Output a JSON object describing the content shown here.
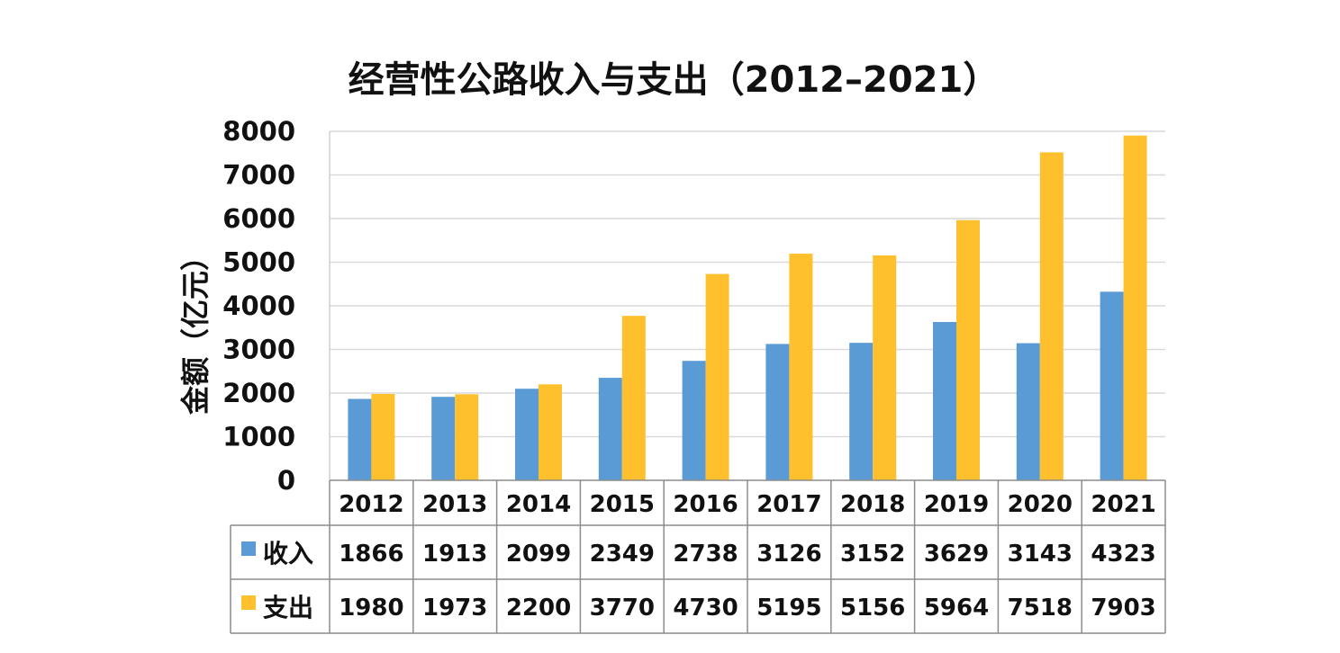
{
  "chart_data": {
    "type": "bar",
    "title": "经营性公路收入与支出（2012–2021）",
    "xlabel": "",
    "ylabel": "金额（亿元）",
    "ylim": [
      0,
      8000
    ],
    "yticks": [
      "0",
      "1000",
      "2000",
      "3000",
      "4000",
      "5000",
      "6000",
      "7000",
      "8000"
    ],
    "categories": [
      "2012",
      "2013",
      "2014",
      "2015",
      "2016",
      "2017",
      "2018",
      "2019",
      "2020",
      "2021"
    ],
    "series": [
      {
        "name": "收入",
        "color": "#5B9BD5",
        "values": [
          1866,
          1913,
          2099,
          2349,
          2738,
          3126,
          3152,
          3629,
          3143,
          4323
        ],
        "labels": [
          "1866",
          "1913",
          "2099",
          "2349",
          "2738",
          "3126",
          "3152",
          "3629",
          "3143",
          "4323"
        ]
      },
      {
        "name": "支出",
        "color": "#FFC02E",
        "values": [
          1980,
          1973,
          2200,
          3770,
          4730,
          5195,
          5156,
          5964,
          7518,
          7903
        ],
        "labels": [
          "1980",
          "1973",
          "2200",
          "3770",
          "4730",
          "5195",
          "5156",
          "5964",
          "7518",
          "7903"
        ]
      }
    ],
    "grid": true,
    "legend": "data-table-left",
    "data_table": true
  }
}
